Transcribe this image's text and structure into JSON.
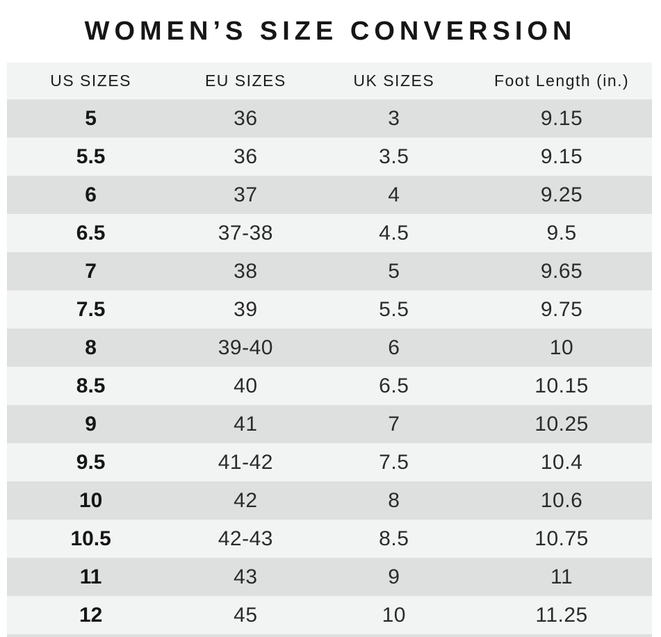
{
  "title": "WOMEN’S SIZE CONVERSION",
  "colors": {
    "row_dark": "#dee0e0",
    "row_light": "#f2f3f3",
    "title_text": "#161616",
    "header_text": "#1c1c1c",
    "cell_text": "#2b2b2b",
    "page_background": "#ffffff"
  },
  "chart_data": {
    "type": "table",
    "title": "WOMEN’S SIZE CONVERSION",
    "columns": [
      "US SIZES",
      "EU SIZES",
      "UK SIZES",
      "Foot Length (in.)"
    ],
    "column_keys": [
      "us-sizes",
      "eu-sizes",
      "uk-sizes",
      "foot-length"
    ],
    "rows": [
      [
        "5",
        "36",
        "3",
        "9.15"
      ],
      [
        "5.5",
        "36",
        "3.5",
        "9.15"
      ],
      [
        "6",
        "37",
        "4",
        "9.25"
      ],
      [
        "6.5",
        "37-38",
        "4.5",
        "9.5"
      ],
      [
        "7",
        "38",
        "5",
        "9.65"
      ],
      [
        "7.5",
        "39",
        "5.5",
        "9.75"
      ],
      [
        "8",
        "39-40",
        "6",
        "10"
      ],
      [
        "8.5",
        "40",
        "6.5",
        "10.15"
      ],
      [
        "9",
        "41",
        "7",
        "10.25"
      ],
      [
        "9.5",
        "41-42",
        "7.5",
        "10.4"
      ],
      [
        "10",
        "42",
        "8",
        "10.6"
      ],
      [
        "10.5",
        "42-43",
        "8.5",
        "10.75"
      ],
      [
        "11",
        "43",
        "9",
        "11"
      ],
      [
        "12",
        "45",
        "10",
        "11.25"
      ]
    ],
    "layout": {
      "row_shading": "alternating, first data row dark",
      "first_column_bold": true
    }
  }
}
